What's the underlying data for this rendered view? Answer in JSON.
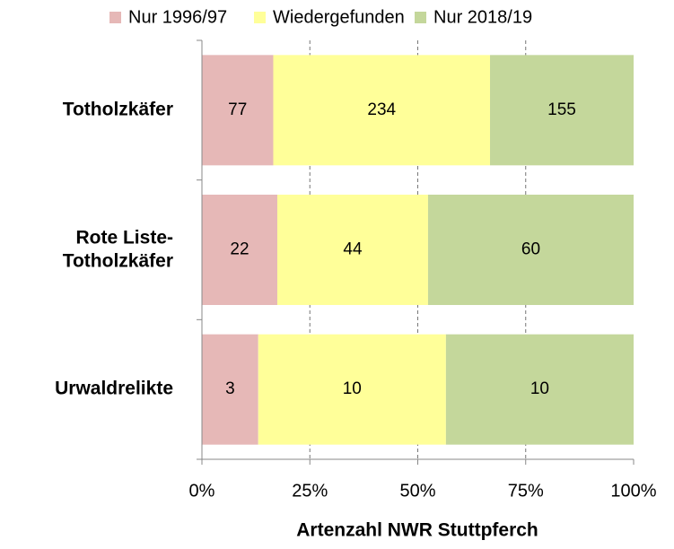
{
  "chart_data": {
    "type": "stacked_bar_100",
    "categories": [
      "Totholzkäfer",
      "Rote Liste-\nTotholzkäfer",
      "Urwaldrelikte"
    ],
    "series": [
      {
        "name": "Nur 1996/97",
        "color": "#e6b8b7",
        "values": [
          77,
          22,
          3
        ]
      },
      {
        "name": "Wiedergefunden",
        "color": "#ffff99",
        "values": [
          234,
          44,
          10
        ]
      },
      {
        "name": "Nur 2018/19",
        "color": "#c4d79b",
        "values": [
          155,
          60,
          10
        ]
      }
    ],
    "x_label": "Artenzahl NWR Stuttpferch",
    "xlim": [
      0,
      100
    ],
    "xticks": [
      {
        "value": 0,
        "label": "0%"
      },
      {
        "value": 25,
        "label": "25%"
      },
      {
        "value": 50,
        "label": "50%"
      },
      {
        "value": 75,
        "label": "75%"
      },
      {
        "value": 100,
        "label": "100%"
      }
    ],
    "grid": true,
    "legend": "top"
  }
}
